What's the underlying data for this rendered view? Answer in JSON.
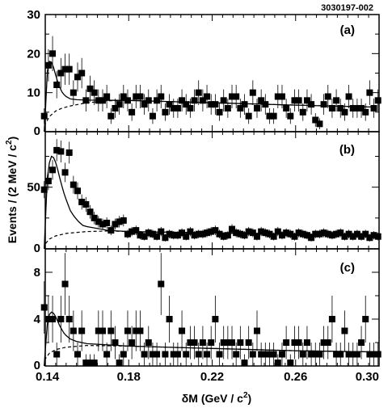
{
  "figure_id": "3030197-002",
  "chart_data": [
    {
      "panel": "(a)",
      "type": "scatter",
      "ylim": [
        0,
        30
      ],
      "yticks": [
        0,
        10,
        20,
        30
      ],
      "x": [
        0.1395,
        0.1415,
        0.1435,
        0.1455,
        0.1475,
        0.1495,
        0.1515,
        0.1535,
        0.1555,
        0.1575,
        0.1595,
        0.1615,
        0.1635,
        0.1655,
        0.1675,
        0.1695,
        0.1715,
        0.1735,
        0.1755,
        0.1775,
        0.1795,
        0.1815,
        0.1835,
        0.1855,
        0.1875,
        0.1895,
        0.1915,
        0.1935,
        0.1955,
        0.1975,
        0.1995,
        0.2015,
        0.2035,
        0.2055,
        0.2075,
        0.2095,
        0.2115,
        0.2135,
        0.2155,
        0.2175,
        0.2195,
        0.2215,
        0.2235,
        0.2255,
        0.2275,
        0.2295,
        0.2315,
        0.2335,
        0.2355,
        0.2375,
        0.2395,
        0.2415,
        0.2435,
        0.2455,
        0.2475,
        0.2495,
        0.2515,
        0.2535,
        0.2555,
        0.2575,
        0.2595,
        0.2615,
        0.2635,
        0.2655,
        0.2675,
        0.2695,
        0.2715,
        0.2735,
        0.2755,
        0.2775,
        0.2795,
        0.2815,
        0.2835,
        0.2855,
        0.2875,
        0.2895,
        0.2915,
        0.2935,
        0.2955,
        0.2975,
        0.2995
      ],
      "y": [
        4,
        17,
        20,
        12,
        15,
        16,
        16,
        10,
        14,
        15,
        8,
        11,
        10,
        8,
        8,
        9,
        4,
        6,
        7,
        9,
        8,
        5,
        9,
        9,
        7,
        8,
        4,
        8,
        9,
        5,
        7,
        6,
        6,
        8,
        7,
        6,
        8,
        10,
        8,
        9,
        7,
        7,
        5,
        8,
        6,
        9,
        9,
        6,
        7,
        4,
        10,
        6,
        8,
        7,
        4,
        4,
        9,
        9,
        6,
        4,
        8,
        8,
        5,
        8,
        7,
        3,
        2,
        7,
        9,
        6,
        8,
        6,
        5,
        9,
        6,
        6,
        6,
        5,
        10,
        6,
        8
      ],
      "fit_solid": [
        [
          0.1395,
          0
        ],
        [
          0.14,
          4.5
        ],
        [
          0.141,
          15.5
        ],
        [
          0.142,
          18.0
        ],
        [
          0.143,
          17.8
        ],
        [
          0.144,
          16.4
        ],
        [
          0.145,
          14.5
        ],
        [
          0.146,
          12.7
        ],
        [
          0.147,
          11.3
        ],
        [
          0.148,
          10.2
        ],
        [
          0.149,
          9.5
        ],
        [
          0.15,
          9.0
        ],
        [
          0.152,
          8.4
        ],
        [
          0.155,
          8.2
        ],
        [
          0.16,
          8.1
        ],
        [
          0.18,
          8.0
        ],
        [
          0.22,
          7.4
        ],
        [
          0.26,
          6.8
        ],
        [
          0.299,
          6.3
        ]
      ],
      "fit_dashed": [
        [
          0.1395,
          0
        ],
        [
          0.14,
          2.0
        ],
        [
          0.142,
          3.9
        ],
        [
          0.145,
          5.3
        ],
        [
          0.148,
          6.0
        ],
        [
          0.152,
          6.6
        ],
        [
          0.16,
          7.4
        ],
        [
          0.17,
          7.9
        ],
        [
          0.18,
          8.0
        ],
        [
          0.22,
          7.4
        ],
        [
          0.26,
          6.8
        ],
        [
          0.299,
          6.3
        ]
      ]
    },
    {
      "panel": "(b)",
      "type": "scatter",
      "ylim": [
        0,
        95
      ],
      "yticks": [
        0,
        50
      ],
      "x": [
        0.1395,
        0.1415,
        0.1435,
        0.1455,
        0.1475,
        0.1495,
        0.1515,
        0.1535,
        0.1555,
        0.1575,
        0.1595,
        0.1615,
        0.1635,
        0.1655,
        0.1675,
        0.1695,
        0.1715,
        0.1735,
        0.1755,
        0.1775,
        0.1795,
        0.1815,
        0.1835,
        0.1855,
        0.1875,
        0.1895,
        0.1915,
        0.1935,
        0.1955,
        0.1975,
        0.1995,
        0.2015,
        0.2035,
        0.2055,
        0.2075,
        0.2095,
        0.2115,
        0.2135,
        0.2155,
        0.2175,
        0.2195,
        0.2215,
        0.2235,
        0.2255,
        0.2275,
        0.2295,
        0.2315,
        0.2335,
        0.2355,
        0.2375,
        0.2395,
        0.2415,
        0.2435,
        0.2455,
        0.2475,
        0.2495,
        0.2515,
        0.2535,
        0.2555,
        0.2575,
        0.2595,
        0.2615,
        0.2635,
        0.2655,
        0.2675,
        0.2695,
        0.2715,
        0.2735,
        0.2755,
        0.2775,
        0.2795,
        0.2815,
        0.2835,
        0.2855,
        0.2875,
        0.2895,
        0.2915,
        0.2935,
        0.2955,
        0.2975,
        0.2995
      ],
      "y": [
        48,
        55,
        64,
        80,
        79,
        62,
        78,
        52,
        47,
        38,
        36,
        30,
        25,
        22,
        20,
        21,
        15,
        20,
        22,
        23,
        12,
        14,
        15,
        11,
        10,
        13,
        12,
        10,
        14,
        9,
        12,
        11,
        11,
        13,
        10,
        14,
        11,
        12,
        12,
        13,
        14,
        15,
        12,
        10,
        11,
        16,
        13,
        12,
        11,
        14,
        13,
        10,
        14,
        13,
        12,
        10,
        14,
        11,
        13,
        12,
        10,
        13,
        12,
        11,
        9,
        12,
        12,
        13,
        12,
        11,
        12,
        13,
        10,
        12,
        10,
        12,
        10,
        12,
        9,
        11,
        10
      ],
      "fit_solid": [
        [
          0.1395,
          0
        ],
        [
          0.14,
          20
        ],
        [
          0.141,
          58
        ],
        [
          0.142,
          70
        ],
        [
          0.143,
          75
        ],
        [
          0.144,
          74
        ],
        [
          0.145,
          70
        ],
        [
          0.146,
          64
        ],
        [
          0.147,
          57
        ],
        [
          0.148,
          51
        ],
        [
          0.149,
          45
        ],
        [
          0.15,
          40
        ],
        [
          0.152,
          31
        ],
        [
          0.154,
          26
        ],
        [
          0.156,
          22
        ],
        [
          0.158,
          19
        ],
        [
          0.16,
          18
        ],
        [
          0.17,
          15
        ],
        [
          0.18,
          14
        ],
        [
          0.22,
          13
        ],
        [
          0.26,
          12
        ],
        [
          0.299,
          11
        ]
      ],
      "fit_dashed": [
        [
          0.1395,
          0
        ],
        [
          0.14,
          4
        ],
        [
          0.142,
          8
        ],
        [
          0.145,
          10.5
        ],
        [
          0.15,
          12.5
        ],
        [
          0.16,
          14
        ],
        [
          0.17,
          14.5
        ],
        [
          0.18,
          14
        ],
        [
          0.22,
          13
        ],
        [
          0.26,
          12
        ],
        [
          0.299,
          11
        ]
      ]
    },
    {
      "panel": "(c)",
      "type": "scatter",
      "ylim": [
        0,
        10
      ],
      "yticks": [
        0,
        4,
        8
      ],
      "x": [
        0.1395,
        0.1415,
        0.1435,
        0.1455,
        0.1475,
        0.1495,
        0.1515,
        0.1535,
        0.1555,
        0.1575,
        0.1595,
        0.1615,
        0.1635,
        0.1655,
        0.1675,
        0.1695,
        0.1715,
        0.1735,
        0.1755,
        0.1775,
        0.1795,
        0.1815,
        0.1835,
        0.1855,
        0.1875,
        0.1895,
        0.1915,
        0.1935,
        0.1955,
        0.1975,
        0.1995,
        0.2015,
        0.2035,
        0.2055,
        0.2075,
        0.2095,
        0.2115,
        0.2135,
        0.2155,
        0.2175,
        0.2195,
        0.2215,
        0.2235,
        0.2255,
        0.2275,
        0.2295,
        0.2315,
        0.2335,
        0.2355,
        0.2375,
        0.2395,
        0.2415,
        0.2435,
        0.2455,
        0.2475,
        0.2495,
        0.2515,
        0.2535,
        0.2555,
        0.2575,
        0.2595,
        0.2615,
        0.2635,
        0.2655,
        0.2675,
        0.2695,
        0.2715,
        0.2735,
        0.2755,
        0.2775,
        0.2795,
        0.2815,
        0.2835,
        0.2855,
        0.2875,
        0.2895,
        0.2915,
        0.2935,
        0.2955,
        0.2975,
        0.2995
      ],
      "y": [
        5,
        4,
        4,
        1,
        4,
        7,
        4,
        3,
        1,
        3,
        0,
        0,
        0,
        3,
        3,
        1,
        3,
        2,
        0,
        1,
        3,
        2,
        3,
        3,
        1,
        2,
        1,
        1,
        7,
        1,
        4,
        1,
        1,
        3,
        1,
        2,
        2,
        1,
        2,
        1,
        2,
        4,
        1,
        2,
        2,
        2,
        1,
        2,
        0,
        2,
        1,
        3,
        1,
        1,
        1,
        1,
        0,
        1,
        2,
        0,
        2,
        2,
        1,
        2,
        1,
        1,
        1,
        2,
        2,
        4,
        1,
        1,
        3,
        1,
        1,
        1,
        2,
        4,
        1,
        1,
        1
      ],
      "fit_solid": [
        [
          0.1395,
          0
        ],
        [
          0.14,
          1.3
        ],
        [
          0.141,
          3.6
        ],
        [
          0.142,
          4.4
        ],
        [
          0.143,
          4.6
        ],
        [
          0.144,
          4.5
        ],
        [
          0.145,
          4.2
        ],
        [
          0.146,
          3.8
        ],
        [
          0.147,
          3.4
        ],
        [
          0.148,
          3.1
        ],
        [
          0.149,
          2.8
        ],
        [
          0.15,
          2.6
        ],
        [
          0.152,
          2.3
        ],
        [
          0.155,
          2.1
        ],
        [
          0.16,
          1.9
        ],
        [
          0.18,
          1.7
        ],
        [
          0.22,
          1.5
        ],
        [
          0.26,
          1.3
        ],
        [
          0.299,
          1.2
        ]
      ],
      "fit_dashed": [
        [
          0.1395,
          0
        ],
        [
          0.14,
          0.6
        ],
        [
          0.142,
          1.1
        ],
        [
          0.145,
          1.4
        ],
        [
          0.15,
          1.6
        ],
        [
          0.16,
          1.75
        ],
        [
          0.18,
          1.7
        ],
        [
          0.22,
          1.5
        ],
        [
          0.26,
          1.3
        ],
        [
          0.299,
          1.2
        ]
      ]
    }
  ],
  "x_axis": {
    "xlim": [
      0.14,
      0.3
    ],
    "ticks": [
      "0.14",
      "0.18",
      "0.22",
      "0.26",
      "0.30"
    ],
    "tick_values": [
      0.14,
      0.18,
      0.22,
      0.26,
      0.3
    ]
  },
  "xlabel_prefix": "δM (GeV / c",
  "xlabel_sup": "2",
  "xlabel_suffix": ")",
  "ylabel_prefix": "Events / (2 MeV / c",
  "ylabel_sup": "2",
  "ylabel_suffix": ")"
}
